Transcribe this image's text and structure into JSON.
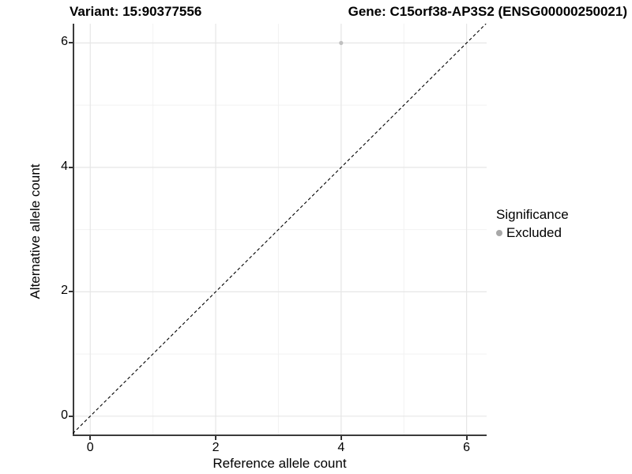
{
  "header": {
    "variant_title": "Variant: 15:90377556",
    "gene_title": "Gene: C15orf38-AP3S2 (ENSG00000250021)"
  },
  "legend": {
    "title": "Significance",
    "items": [
      {
        "label": "Excluded",
        "marker_color": "#a8a8a8"
      }
    ]
  },
  "colors": {
    "background": "#ffffff",
    "panel_background": "#ffffff",
    "major_grid": "#e6e6e6",
    "minor_grid": "#f2f2f2",
    "axis_line": "#3b3b3b",
    "reference_line": "#000000",
    "point": "#c0c0c0",
    "text": "#000000"
  },
  "chart_data": {
    "type": "scatter",
    "title": "Variant: 15:90377556 | Gene: C15orf38-AP3S2 (ENSG00000250021)",
    "xlabel": "Reference allele count",
    "ylabel": "Alternative allele count",
    "xlim": [
      -0.28,
      6.32
    ],
    "ylim": [
      -0.32,
      6.31
    ],
    "x_ticks": [
      0,
      2,
      4,
      6
    ],
    "y_ticks": [
      0,
      2,
      4,
      6
    ],
    "x_minor_ticks": [
      1,
      3,
      5
    ],
    "y_minor_ticks": [
      1,
      3,
      5
    ],
    "grid": true,
    "legend_position": "right",
    "series": [
      {
        "name": "Excluded",
        "points": [
          {
            "x": 4,
            "y": 6
          }
        ],
        "color": "#c0c0c0",
        "point_radius": 2.6
      }
    ],
    "reference_line": {
      "kind": "identity",
      "slope": 1,
      "intercept": 0,
      "style": "dashed",
      "color": "#000000"
    }
  }
}
